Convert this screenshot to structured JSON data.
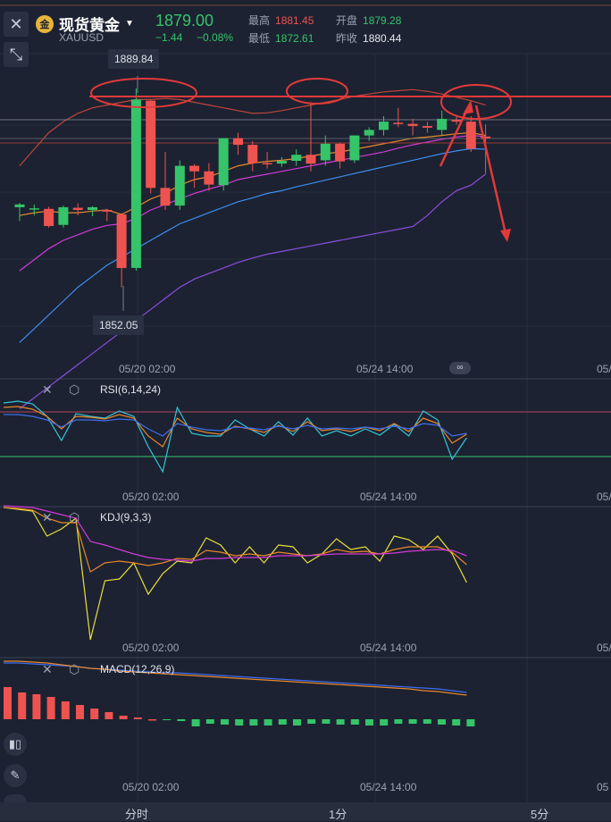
{
  "header": {
    "close_icon": "close-icon",
    "instrument_name": "现货黄金",
    "symbol": "XAUUSD",
    "last_price": "1879.00",
    "change": "−1.44",
    "change_pct": "−0.08%",
    "high_label": "最高",
    "high_value": "1881.45",
    "open_label": "开盘",
    "open_value": "1879.28",
    "low_label": "最低",
    "low_value": "1872.61",
    "prev_label": "昨收",
    "prev_value": "1880.44",
    "colors": {
      "up": "#35c46a",
      "down": "#ef5350"
    }
  },
  "main_chart": {
    "high_tag": "1889.84",
    "low_tag": "1852.05",
    "time_ticks": [
      "05/20 02:00",
      "05/24 14:00",
      "05/"
    ]
  },
  "indicators": {
    "rsi": {
      "label": "RSI(6,14,24)",
      "time_ticks": [
        "05/20 02:00",
        "05/24 14:00",
        "05/"
      ]
    },
    "kdj": {
      "label": "KDJ(9,3,3)",
      "time_ticks": [
        "05/20 02:00",
        "05/24 14:00",
        "05/"
      ]
    },
    "macd": {
      "label": "MACD(12,26,9)",
      "time_ticks": [
        "05/20 02:00",
        "05/24 14:00",
        "05"
      ]
    }
  },
  "bottom_bar": {
    "tabs": [
      "分时",
      "1分",
      "5分"
    ]
  },
  "chart_data": {
    "type": "candlestick",
    "candles": [
      [
        1866.5,
        1867.3,
        1864.0,
        1867.0
      ],
      [
        1866.2,
        1867.0,
        1865.0,
        1866.3
      ],
      [
        1866.2,
        1866.6,
        1862.8,
        1863.1
      ],
      [
        1863.3,
        1866.8,
        1862.8,
        1866.5
      ],
      [
        1866.4,
        1867.2,
        1865.0,
        1866.0
      ],
      [
        1866.0,
        1866.7,
        1864.9,
        1866.5
      ],
      [
        1866.0,
        1866.2,
        1864.0,
        1865.7
      ],
      [
        1865.2,
        1865.4,
        1852.0,
        1855.5
      ],
      [
        1855.5,
        1888.0,
        1855.0,
        1886.0
      ],
      [
        1885.8,
        1886.0,
        1869.0,
        1870.0
      ],
      [
        1870.0,
        1876.5,
        1866.0,
        1866.8
      ],
      [
        1866.8,
        1875.0,
        1866.0,
        1874.0
      ],
      [
        1874.0,
        1874.3,
        1870.0,
        1873.0
      ],
      [
        1873.0,
        1874.5,
        1869.5,
        1870.6
      ],
      [
        1870.5,
        1879.0,
        1869.5,
        1879.0
      ],
      [
        1879.0,
        1880.0,
        1876.0,
        1877.8
      ],
      [
        1877.8,
        1878.5,
        1873.0,
        1874.5
      ],
      [
        1874.5,
        1876.5,
        1873.5,
        1874.4
      ],
      [
        1874.4,
        1875.6,
        1873.8,
        1874.9
      ],
      [
        1874.9,
        1877.0,
        1874.0,
        1876.0
      ],
      [
        1876.0,
        1885.5,
        1873.0,
        1874.4
      ],
      [
        1875.0,
        1879.5,
        1874.0,
        1878.0
      ],
      [
        1878.0,
        1878.2,
        1873.5,
        1874.8
      ],
      [
        1875.0,
        1879.5,
        1874.5,
        1879.5
      ],
      [
        1879.5,
        1881.0,
        1878.5,
        1880.5
      ],
      [
        1880.5,
        1883.0,
        1879.5,
        1882.0
      ],
      [
        1881.8,
        1884.5,
        1881.0,
        1881.6
      ],
      [
        1881.6,
        1882.5,
        1879.5,
        1881.2
      ],
      [
        1881.2,
        1882.0,
        1880.0,
        1880.9
      ],
      [
        1880.5,
        1884.0,
        1879.5,
        1882.5
      ],
      [
        1882.3,
        1883.0,
        1881.5,
        1882.0
      ],
      [
        1882.0,
        1883.0,
        1876.5,
        1877.1
      ],
      [
        1879.3,
        1881.5,
        1872.6,
        1879.0
      ]
    ],
    "ma_orange": [
      1865.0,
      1865.5,
      1865.8,
      1865.5,
      1865.5,
      1865.8,
      1866.0,
      1865.2,
      1866.5,
      1868.0,
      1869.0,
      1870.5,
      1871.5,
      1872.0,
      1873.0,
      1874.0,
      1874.5,
      1874.8,
      1875.0,
      1875.3,
      1875.8,
      1876.2,
      1876.5,
      1877.0,
      1877.5,
      1878.0,
      1878.5,
      1879.0,
      1879.2,
      1879.5,
      1879.8,
      1880.0,
      1879.5
    ],
    "ma_magenta": [
      1855.0,
      1857.0,
      1859.0,
      1860.5,
      1861.5,
      1862.5,
      1863.2,
      1863.5,
      1864.5,
      1866.0,
      1867.0,
      1868.0,
      1869.0,
      1869.8,
      1870.5,
      1871.5,
      1872.0,
      1872.5,
      1873.0,
      1873.5,
      1874.0,
      1874.5,
      1875.0,
      1875.5,
      1876.0,
      1876.5,
      1877.2,
      1877.8,
      1878.3,
      1878.8,
      1879.2,
      1879.5,
      1879.3
    ],
    "ma_blue": [
      1842.0,
      1844.5,
      1847.0,
      1849.5,
      1852.0,
      1854.0,
      1856.0,
      1857.5,
      1859.0,
      1860.5,
      1862.0,
      1863.5,
      1864.5,
      1865.5,
      1866.5,
      1867.5,
      1868.2,
      1869.0,
      1869.5,
      1870.2,
      1870.8,
      1871.4,
      1872.0,
      1872.6,
      1873.2,
      1873.8,
      1874.4,
      1875.0,
      1875.6,
      1876.2,
      1876.7,
      1877.1,
      1877.0
    ],
    "boll_upper": [
      1874.0,
      1877.0,
      1880.0,
      1882.0,
      1883.5,
      1884.5,
      1885.0,
      1885.5,
      1886.0,
      1886.0,
      1886.2,
      1886.0,
      1885.5,
      1885.0,
      1884.5,
      1884.0,
      1883.5,
      1883.6,
      1884.0,
      1884.5,
      1885.0,
      1885.5,
      1886.0,
      1886.6,
      1887.0,
      1887.4,
      1887.6,
      1887.8,
      1887.5,
      1887.0,
      1886.4,
      1885.8,
      1885.0
    ],
    "boll_lower": [
      1830.0,
      1832.0,
      1834.0,
      1836.0,
      1838.0,
      1840.0,
      1842.0,
      1844.0,
      1846.0,
      1848.0,
      1850.0,
      1852.0,
      1853.5,
      1854.5,
      1855.5,
      1856.5,
      1857.3,
      1858.0,
      1858.5,
      1859.0,
      1859.5,
      1860.0,
      1860.5,
      1861.0,
      1861.5,
      1862.0,
      1862.5,
      1863.0,
      1865.0,
      1867.5,
      1869.5,
      1870.5,
      1872.5
    ]
  }
}
